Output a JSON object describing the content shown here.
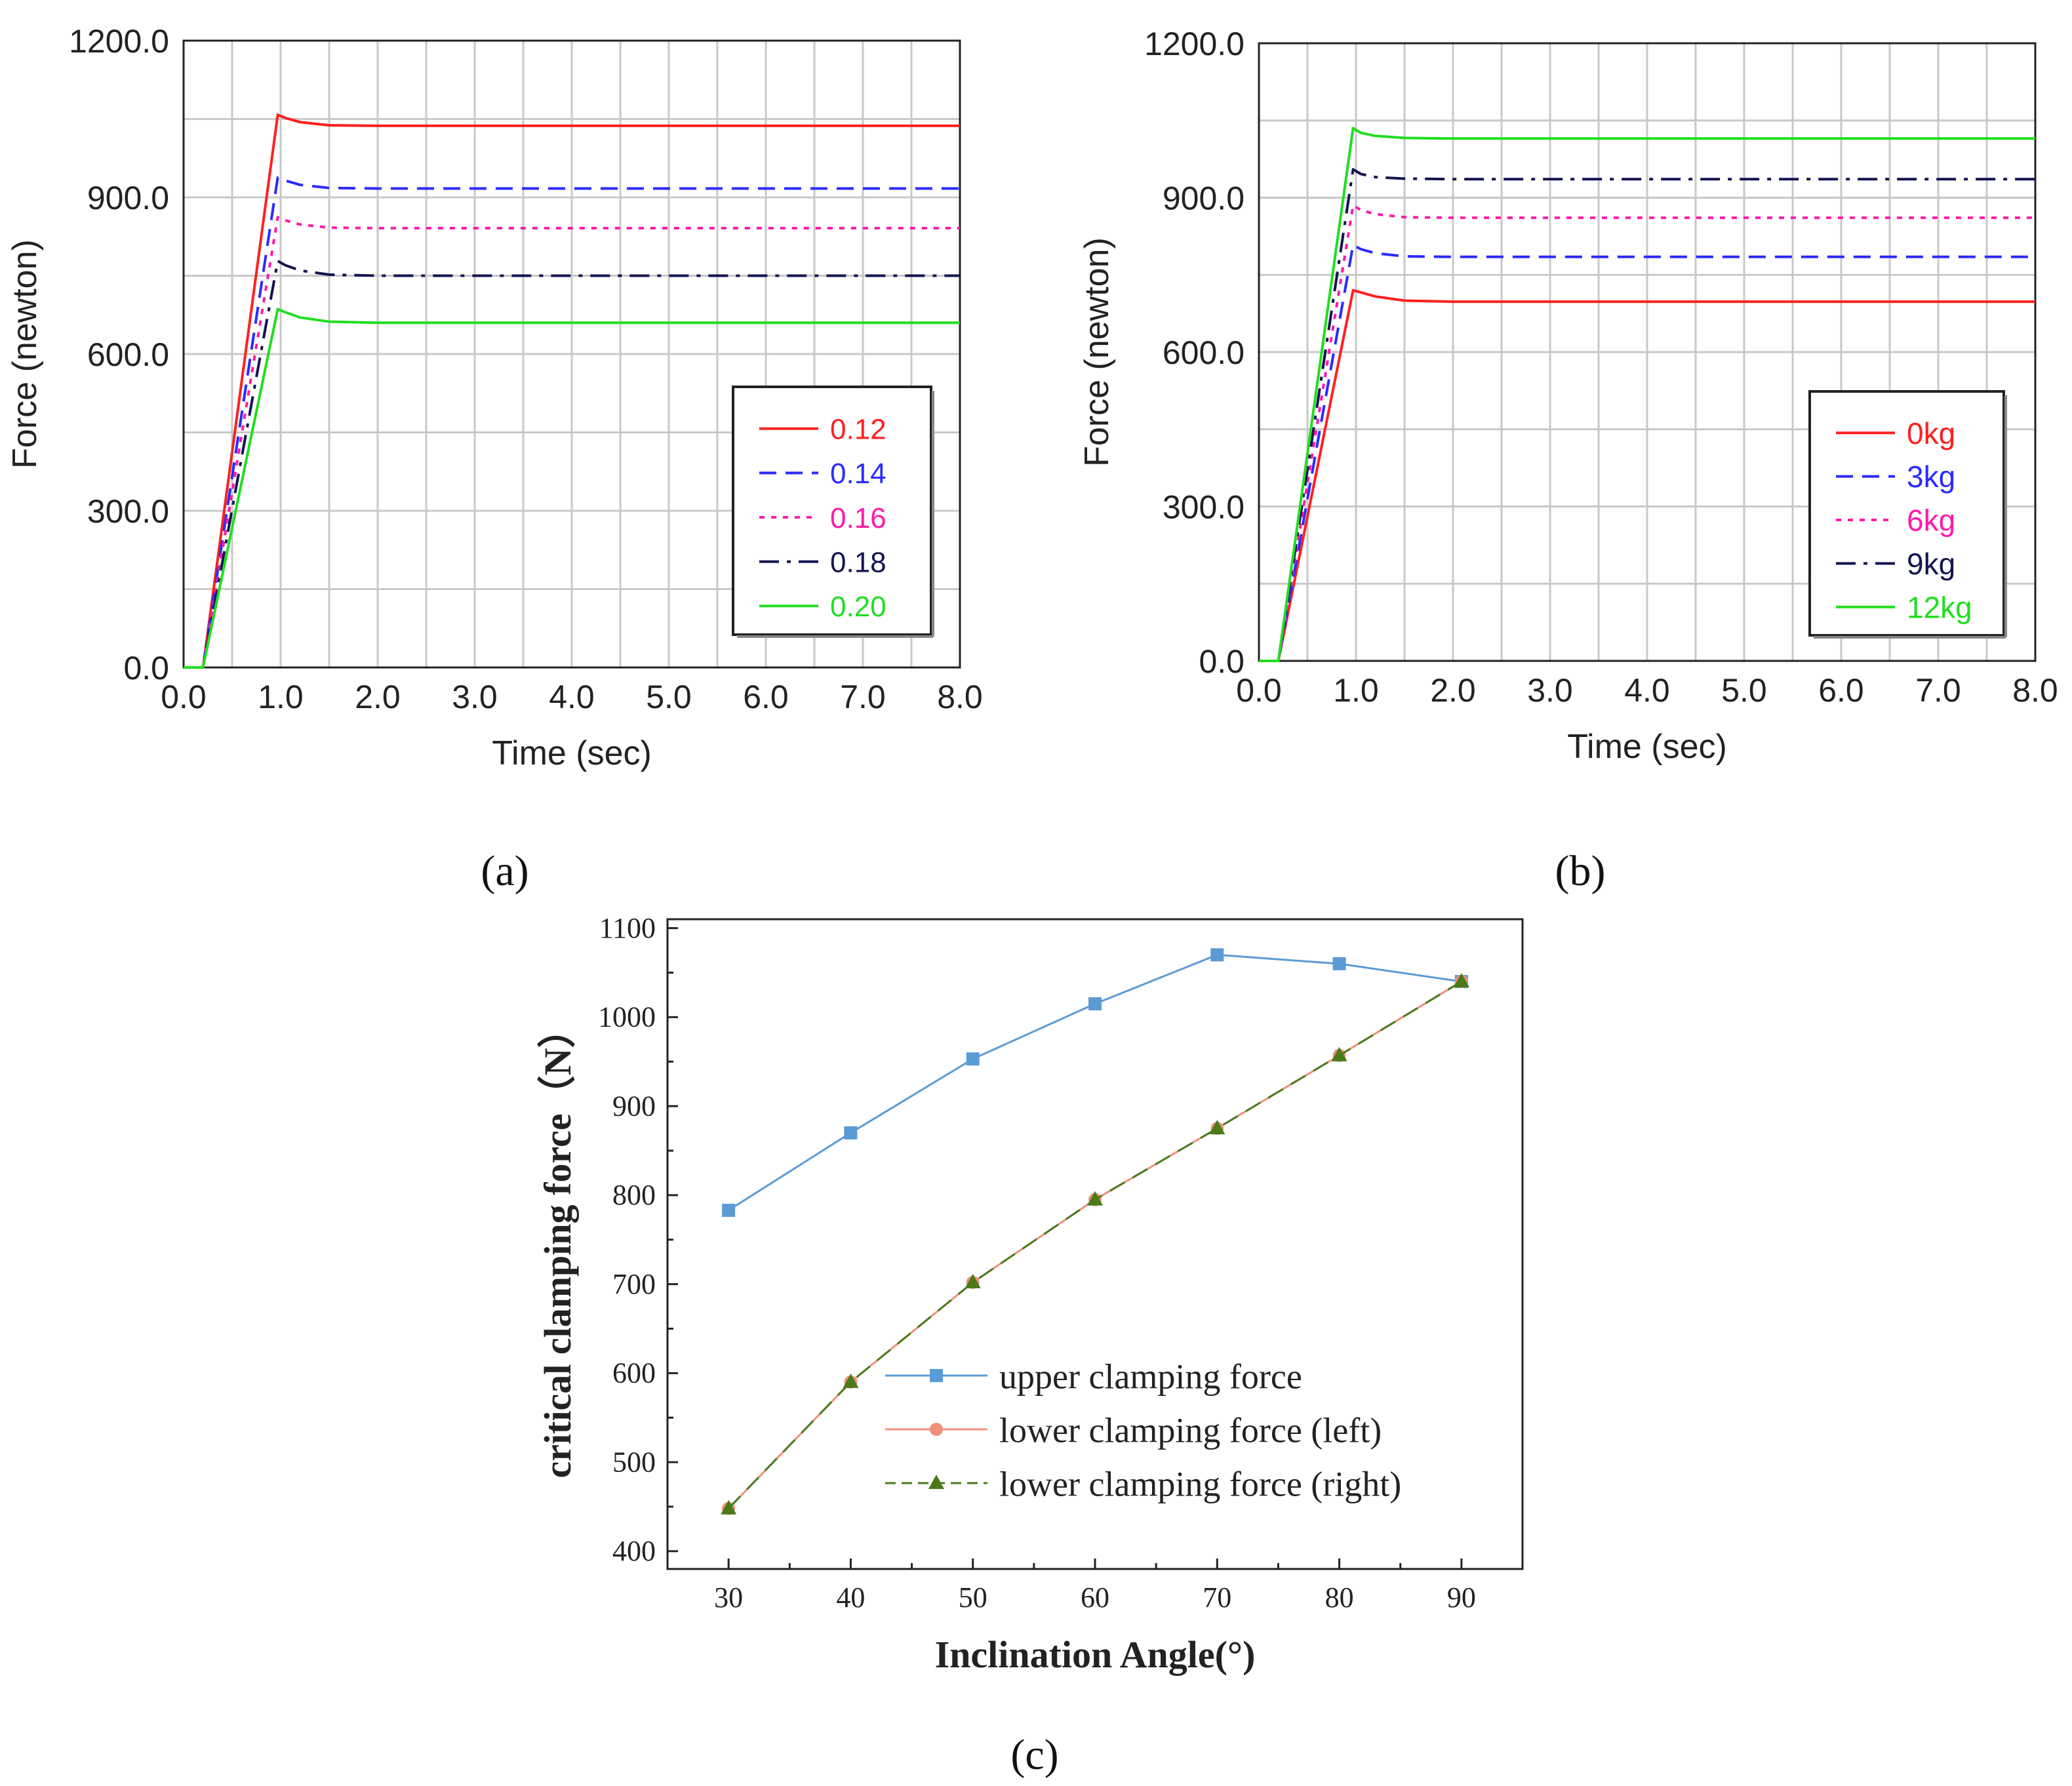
{
  "chart_data": [
    {
      "type": "line",
      "panel_label": "(a)",
      "xlabel": "Time (sec)",
      "ylabel": "Force (newton)",
      "xlim": [
        0,
        8
      ],
      "ylim": [
        0,
        1200
      ],
      "x_ticks": [
        "0.0",
        "1.0",
        "2.0",
        "3.0",
        "4.0",
        "5.0",
        "6.0",
        "7.0",
        "8.0"
      ],
      "y_ticks": [
        "0.0",
        "300.0",
        "600.0",
        "900.0",
        "1200.0"
      ],
      "legend_position": "bottom-right",
      "series": [
        {
          "name": "0.12",
          "color": "#ff2020",
          "dash": "solid",
          "x": [
            0,
            0.2,
            0.97,
            1.05,
            1.2,
            1.5,
            2.0,
            8.0
          ],
          "y": [
            0,
            0,
            1058,
            1052,
            1044,
            1038,
            1037,
            1037
          ]
        },
        {
          "name": "0.14",
          "color": "#2b2bff",
          "dash": "dash",
          "x": [
            0,
            0.2,
            0.97,
            1.05,
            1.2,
            1.5,
            2.0,
            8.0
          ],
          "y": [
            0,
            0,
            938,
            932,
            924,
            918,
            917,
            917
          ]
        },
        {
          "name": "0.16",
          "color": "#ff1aa8",
          "dash": "dot",
          "x": [
            0,
            0.2,
            0.97,
            1.05,
            1.2,
            1.5,
            2.0,
            8.0
          ],
          "y": [
            0,
            0,
            862,
            856,
            848,
            842,
            841,
            841
          ]
        },
        {
          "name": "0.18",
          "color": "#141450",
          "dash": "dashdot",
          "x": [
            0,
            0.2,
            0.97,
            1.05,
            1.2,
            1.5,
            2.0,
            8.0
          ],
          "y": [
            0,
            0,
            778,
            770,
            760,
            752,
            750,
            750
          ]
        },
        {
          "name": "0.20",
          "color": "#22dd22",
          "dash": "solid",
          "x": [
            0,
            0.2,
            0.97,
            1.05,
            1.2,
            1.5,
            2.0,
            8.0
          ],
          "y": [
            0,
            0,
            686,
            680,
            670,
            662,
            660,
            660
          ]
        }
      ]
    },
    {
      "type": "line",
      "panel_label": "(b)",
      "xlabel": "Time (sec)",
      "ylabel": "Force (newton)",
      "xlim": [
        0,
        8
      ],
      "ylim": [
        0,
        1200
      ],
      "x_ticks": [
        "0.0",
        "1.0",
        "2.0",
        "3.0",
        "4.0",
        "5.0",
        "6.0",
        "7.0",
        "8.0"
      ],
      "y_ticks": [
        "0.0",
        "300.0",
        "600.0",
        "900.0",
        "1200.0"
      ],
      "legend_position": "bottom-right",
      "series": [
        {
          "name": "0kg",
          "color": "#ff2020",
          "dash": "solid",
          "x": [
            0,
            0.2,
            0.97,
            1.05,
            1.2,
            1.5,
            2.0,
            8.0
          ],
          "y": [
            0,
            0,
            720,
            716,
            708,
            700,
            698,
            698
          ]
        },
        {
          "name": "3kg",
          "color": "#2b2bff",
          "dash": "dash",
          "x": [
            0,
            0.2,
            0.97,
            1.05,
            1.2,
            1.5,
            2.0,
            8.0
          ],
          "y": [
            0,
            0,
            808,
            800,
            792,
            786,
            785,
            785
          ]
        },
        {
          "name": "6kg",
          "color": "#ff1aa8",
          "dash": "dot",
          "x": [
            0,
            0.2,
            0.97,
            1.05,
            1.2,
            1.5,
            2.0,
            8.0
          ],
          "y": [
            0,
            0,
            885,
            876,
            868,
            862,
            861,
            861
          ]
        },
        {
          "name": "9kg",
          "color": "#141450",
          "dash": "dashdot",
          "x": [
            0,
            0.2,
            0.97,
            1.05,
            1.2,
            1.5,
            2.0,
            8.0
          ],
          "y": [
            0,
            0,
            955,
            946,
            940,
            937,
            936,
            936
          ]
        },
        {
          "name": "12kg",
          "color": "#22dd22",
          "dash": "solid",
          "x": [
            0,
            0.2,
            0.97,
            1.05,
            1.2,
            1.5,
            2.0,
            8.0
          ],
          "y": [
            0,
            0,
            1035,
            1026,
            1020,
            1016,
            1015,
            1015
          ]
        }
      ]
    },
    {
      "type": "line",
      "panel_label": "(c)",
      "xlabel": "Inclination Angle(°)",
      "ylabel": "critical clamping force（N）",
      "xlim": [
        25,
        95
      ],
      "ylim": [
        380,
        1110
      ],
      "x_ticks": [
        "30",
        "40",
        "50",
        "60",
        "70",
        "80",
        "90"
      ],
      "y_ticks": [
        "400",
        "500",
        "600",
        "700",
        "800",
        "900",
        "1000",
        "1100"
      ],
      "legend_position": "bottom-right",
      "categories": [
        30,
        40,
        50,
        60,
        70,
        80,
        90
      ],
      "series": [
        {
          "name": "upper clamping force",
          "color": "#5b9bd5",
          "dash": "solid",
          "marker": "square",
          "values": [
            783,
            870,
            953,
            1015,
            1070,
            1060,
            1040
          ]
        },
        {
          "name": "lower clamping force (left)",
          "color": "#f0907a",
          "dash": "solid",
          "marker": "circle",
          "values": [
            448,
            590,
            702,
            795,
            875,
            957,
            1040
          ]
        },
        {
          "name": "lower clamping force (right)",
          "color": "#4a7a1a",
          "dash": "dash",
          "marker": "triangle",
          "values": [
            448,
            590,
            702,
            795,
            875,
            957,
            1040
          ]
        }
      ]
    }
  ]
}
